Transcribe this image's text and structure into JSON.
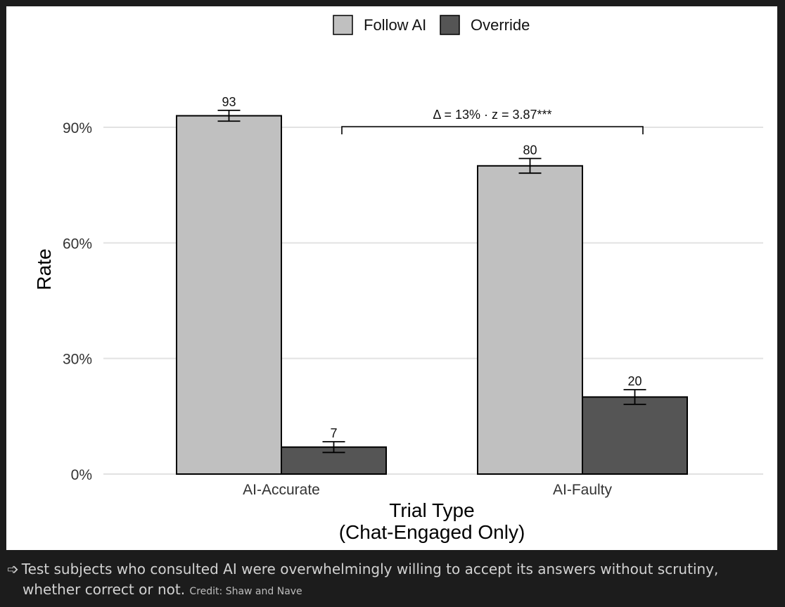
{
  "chart_data": {
    "type": "bar",
    "categories": [
      "AI-Accurate",
      "AI-Faulty"
    ],
    "series": [
      {
        "name": "Follow AI",
        "values": [
          93,
          80
        ],
        "errors": [
          1.4,
          1.9
        ],
        "color": "#c0c0c0"
      },
      {
        "name": "Override",
        "values": [
          7,
          20
        ],
        "errors": [
          1.4,
          1.9
        ],
        "color": "#555555"
      }
    ],
    "data_labels": [
      [
        "93",
        "80"
      ],
      [
        "7",
        "20"
      ]
    ],
    "y_ticks": [
      0,
      30,
      60,
      90
    ],
    "y_tick_labels": [
      "0%",
      "30%",
      "60%",
      "90%"
    ],
    "ylim": [
      0,
      100
    ],
    "ylabel": "Rate",
    "xlabel": "Trial Type",
    "xlabel_line2": "(Chat-Engaged Only)",
    "annotation": "Δ = 13% · z = 3.87***",
    "legend_position": "top",
    "grid": "horizontal"
  },
  "caption": {
    "arrow": "➩",
    "text": "Test subjects who consulted AI were overwhelmingly willing to accept its answers without scrutiny, whether correct or not.",
    "credit": "Credit: Shaw and Nave"
  }
}
